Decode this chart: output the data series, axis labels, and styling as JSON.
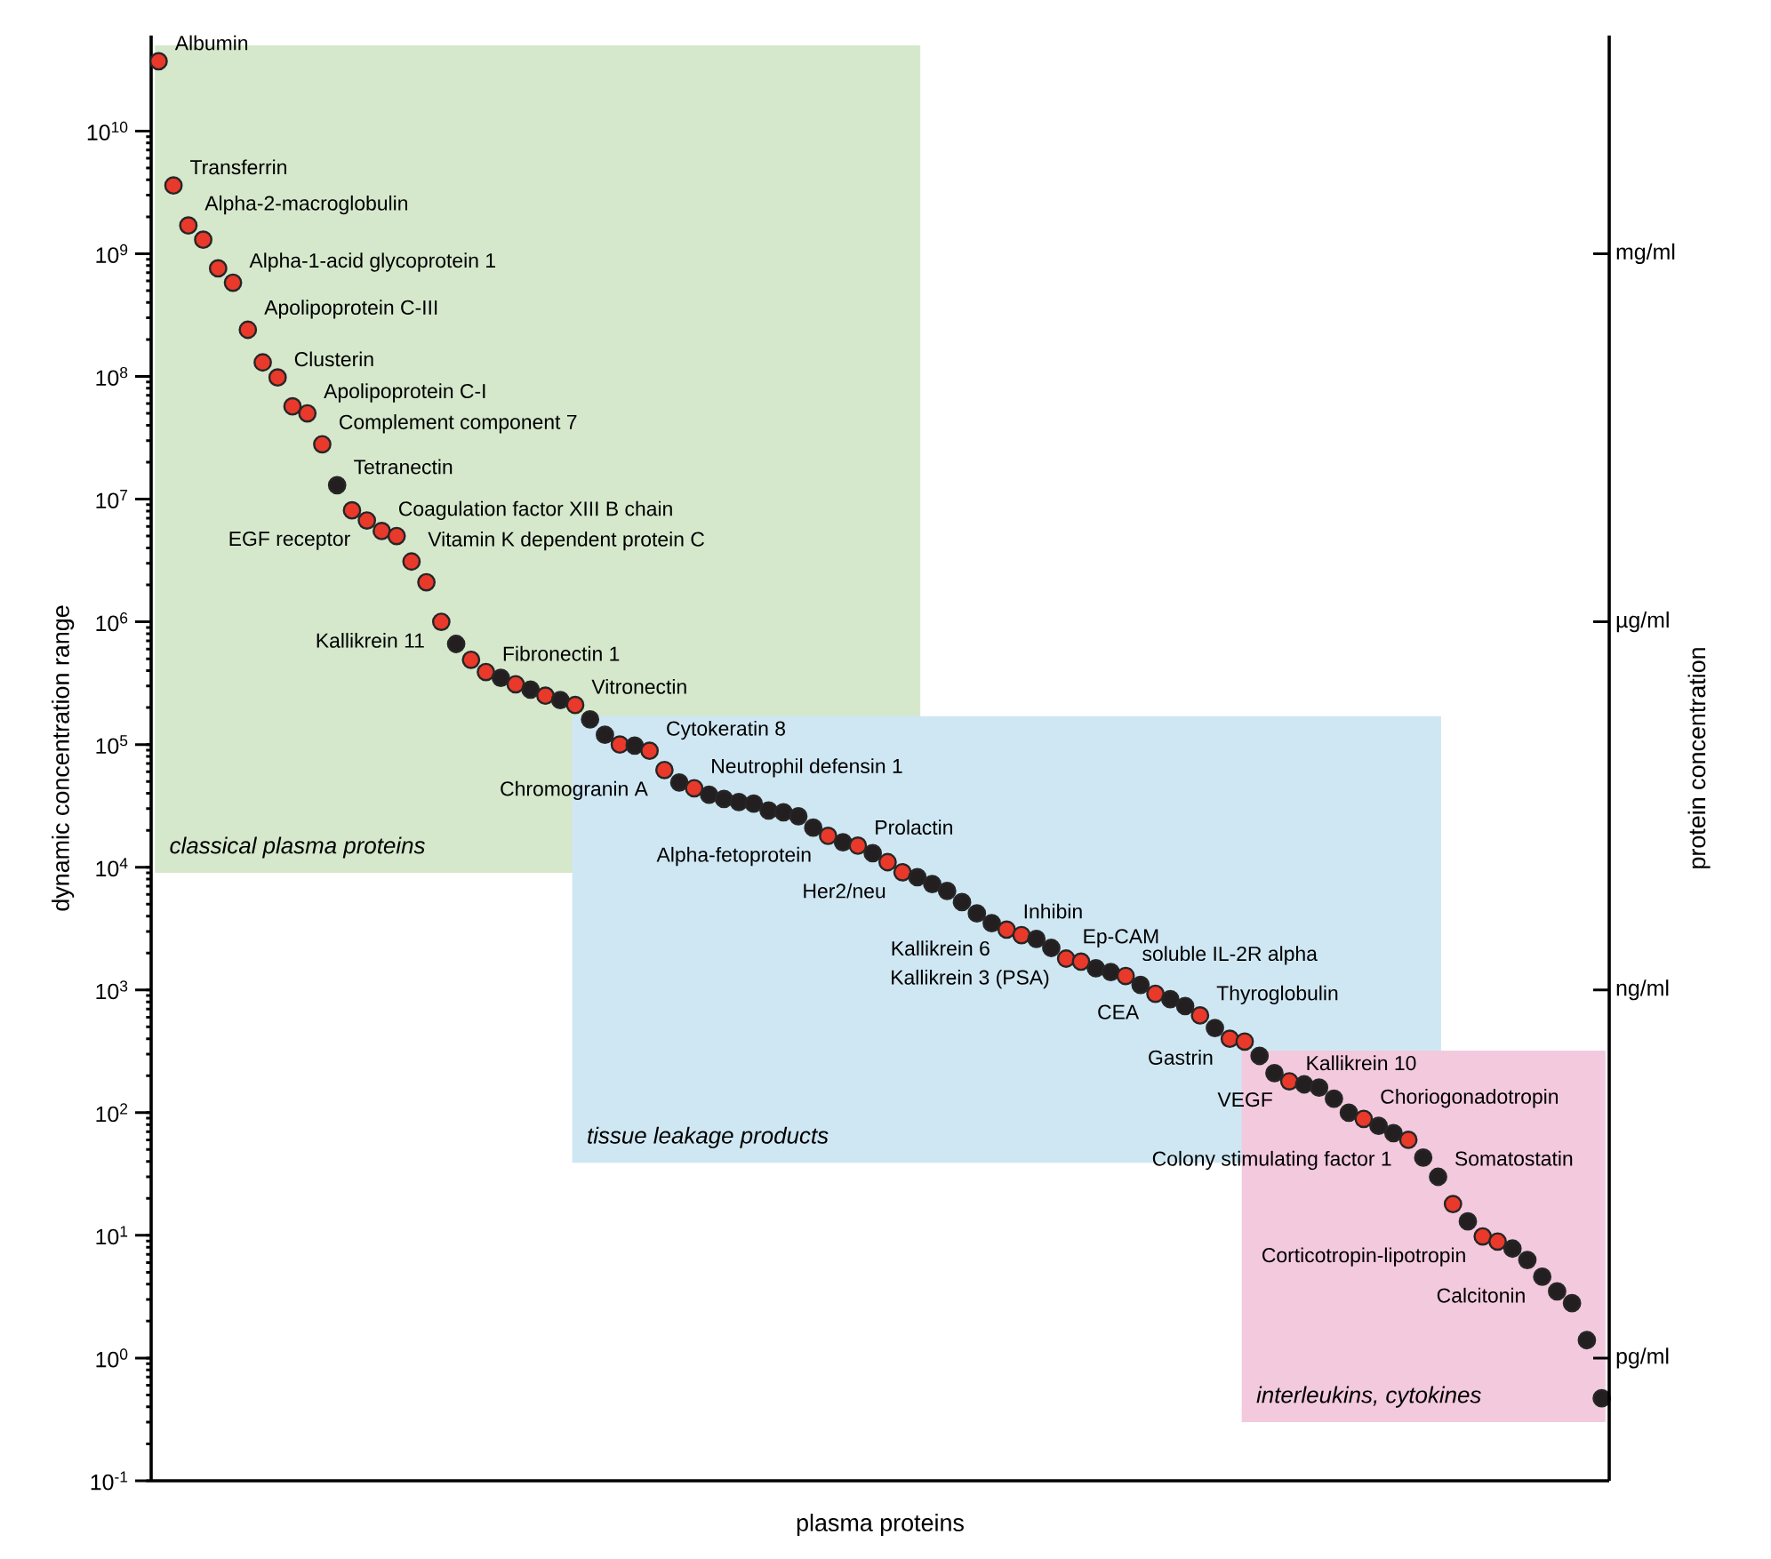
{
  "chart_data": {
    "type": "scatter",
    "xlabel": "plasma proteins",
    "ylabel": "dynamic concentration range",
    "y2label": "protein concentration",
    "log": "y",
    "ylim": [
      0.1,
      60000000000.0
    ],
    "yticks": [
      {
        "value": 0.1,
        "label": "10$^{-1}$"
      },
      {
        "value": 1,
        "label": "10$^{0}$"
      },
      {
        "value": 10,
        "label": "10$^{1}$"
      },
      {
        "value": 100,
        "label": "10$^{2}$"
      },
      {
        "value": 1000,
        "label": "10$^{3}$"
      },
      {
        "value": 10000.0,
        "label": "10$^{4}$"
      },
      {
        "value": 100000.0,
        "label": "10$^{5}$"
      },
      {
        "value": 1000000.0,
        "label": "10$^{6}$"
      },
      {
        "value": 10000000.0,
        "label": "10$^{7}$"
      },
      {
        "value": 100000000.0,
        "label": "10$^{8}$"
      },
      {
        "value": 1000000000.0,
        "label": "10$^{9}$"
      },
      {
        "value": 10000000000.0,
        "label": "10$^{10}$"
      }
    ],
    "categories": [
      null,
      null,
      null,
      null,
      null,
      null,
      null,
      null,
      null,
      null,
      null,
      null,
      null,
      null,
      null,
      null,
      null,
      null,
      null,
      null,
      null,
      null,
      null,
      null,
      null,
      null,
      null,
      null,
      null,
      null,
      null,
      null,
      null,
      null,
      null,
      null,
      null,
      null,
      null,
      null,
      null,
      null,
      null,
      null,
      null,
      null,
      null,
      null,
      null,
      null,
      null,
      null,
      null,
      null,
      null,
      null,
      null,
      null,
      null,
      null,
      null,
      null,
      null,
      null,
      null,
      null,
      null,
      null,
      null,
      null,
      null,
      null,
      null,
      null,
      null,
      null,
      null,
      null,
      null,
      null,
      null,
      null,
      null,
      null,
      null,
      null,
      null,
      null,
      null,
      null,
      null,
      null,
      null,
      null,
      null,
      null,
      null,
      null
    ],
    "values": [
      37000000000.0,
      3600000000.0,
      1700000000.0,
      1300000000.0,
      760000000.0,
      580000000.0,
      240000000.0,
      130000000.0,
      98000000.0,
      57000000.0,
      50000000.0,
      28000000.0,
      13000000.0,
      8100000.0,
      6700000.0,
      5500000.0,
      5000000.0,
      3100000.0,
      2100000.0,
      1000000.0,
      660000.0,
      490000.0,
      390000.0,
      350000.0,
      310000.0,
      280000.0,
      250000.0,
      230000.0,
      210000.0,
      160000.0,
      120000.0,
      100000.0,
      98000.0,
      89000.0,
      62000.0,
      49000.0,
      44000.0,
      39000.0,
      36000.0,
      34000.0,
      33000.0,
      29000.0,
      28000.0,
      26000.0,
      21000.0,
      18000.0,
      16000.0,
      15000.0,
      13000.0,
      11000.0,
      9100.0,
      8300.0,
      7300.0,
      6400.0,
      5200.0,
      4200.0,
      3500.0,
      3100.0,
      2800.0,
      2600.0,
      2200.0,
      1800.0,
      1700.0,
      1500.0,
      1400.0,
      1300.0,
      1100.0,
      930,
      840,
      740,
      620,
      490,
      400,
      380,
      290,
      210,
      180,
      170,
      160,
      130,
      100,
      89,
      78,
      68,
      60,
      43,
      30,
      18,
      13,
      9.8,
      8.9,
      7.8,
      6.3,
      4.6,
      3.5,
      2.8,
      1.4,
      0.47
    ],
    "colors": [
      "#e8392b",
      "#e8392b",
      "#e8392b",
      "#e8392b",
      "#e8392b",
      "#e8392b",
      "#e8392b",
      "#e8392b",
      "#e8392b",
      "#e8392b",
      "#e8392b",
      "#e8392b",
      "#231f20",
      "#e8392b",
      "#e8392b",
      "#e8392b",
      "#e8392b",
      "#e8392b",
      "#e8392b",
      "#e8392b",
      "#231f20",
      "#e8392b",
      "#e8392b",
      "#231f20",
      "#e8392b",
      "#231f20",
      "#e8392b",
      "#231f20",
      "#e8392b",
      "#231f20",
      "#231f20",
      "#e8392b",
      "#231f20",
      "#e8392b",
      "#e8392b",
      "#231f20",
      "#e8392b",
      "#231f20",
      "#231f20",
      "#231f20",
      "#231f20",
      "#231f20",
      "#231f20",
      "#231f20",
      "#231f20",
      "#e8392b",
      "#231f20",
      "#e8392b",
      "#231f20",
      "#e8392b",
      "#e8392b",
      "#231f20",
      "#231f20",
      "#231f20",
      "#231f20",
      "#231f20",
      "#231f20",
      "#e8392b",
      "#e8392b",
      "#231f20",
      "#231f20",
      "#e8392b",
      "#e8392b",
      "#231f20",
      "#231f20",
      "#e8392b",
      "#231f20",
      "#e8392b",
      "#231f20",
      "#231f20",
      "#e8392b",
      "#231f20",
      "#e8392b",
      "#e8392b",
      "#231f20",
      "#231f20",
      "#e8392b",
      "#231f20",
      "#231f20",
      "#231f20",
      "#231f20",
      "#e8392b",
      "#231f20",
      "#231f20",
      "#e8392b",
      "#231f20",
      "#231f20",
      "#e8392b",
      "#231f20",
      "#e8392b",
      "#e8392b",
      "#231f20",
      "#231f20",
      "#231f20",
      "#231f20",
      "#231f20",
      "#231f20",
      "#231f20"
    ],
    "bands": [
      {
        "axis": "y",
        "from": 9000.0,
        "to": 50000000000.0,
        "label": "classical plasma proteins",
        "color": "#d5e8cc"
      },
      {
        "axis": "y",
        "from": 39,
        "to": 170000.0,
        "label": "tissue leakage products",
        "color": "#cfe7f3"
      },
      {
        "axis": "y",
        "from": 0.3,
        "to": 320,
        "label": "interleukins, cytokines",
        "color": "#f3c9dd"
      }
    ],
    "annotations": [
      "Albumin",
      "Transferrin",
      "Alpha-2-macroglobulin",
      "Alpha-1-acid glycoprotein 1",
      "Apolipoprotein C-III",
      "Clusterin",
      "Apolipoprotein C-I",
      "Complement component 7",
      "Tetranectin",
      "Coagulation factor XIII B chain",
      "EGF receptor",
      "Vitamin K dependent protein C",
      "Kallikrein 11",
      "Fibronectin 1",
      "Vitronectin",
      "Cytokeratin 8",
      "Chromogranin A",
      "Neutrophil defensin 1",
      "Prolactin",
      "Alpha-fetoprotein",
      "Her2/neu",
      "Inhibin",
      "Ep-CAM",
      "Kallikrein 6",
      "soluble IL-2R alpha",
      "Kallikrein 3 (PSA)",
      "Thyroglobulin",
      "CEA",
      "Kallikrein 10",
      "Gastrin",
      "Choriogonadotropin",
      "VEGF",
      "Colony stimulating factor 1",
      "Somatostatin",
      "Corticotropin-lipotropin",
      "Calcitonin",
      "mg/ml",
      "µg/ml",
      "ng/ml",
      "pg/ml"
    ]
  }
}
